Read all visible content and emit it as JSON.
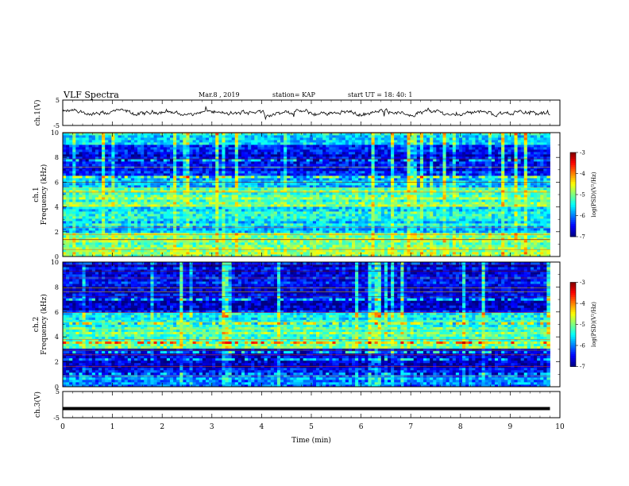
{
  "header": {
    "title": "VLF Spectra",
    "date": "Mar.8 , 2019",
    "station": "station= KAP",
    "start": "start UT = 18: 40: 1"
  },
  "chart_data": [
    {
      "type": "line",
      "name": "ch1-waveform",
      "ylabel": "ch.1(V)",
      "yticks": [
        "5",
        "-5"
      ],
      "ylim": [
        -5,
        5
      ],
      "xlim": [
        0,
        10
      ],
      "x_end": 9.8,
      "description_values": "noisy trace oscillating around 0 V with amplitude ~1-2 V"
    },
    {
      "type": "heatmap",
      "name": "ch1-spectrogram",
      "ylabel_line1": "ch.1",
      "ylabel_line2": "Frequency (kHz)",
      "yticks": [
        "0",
        "2",
        "4",
        "6",
        "8",
        "10"
      ],
      "ylim": [
        0,
        10
      ],
      "xlim": [
        0,
        10
      ],
      "x_end": 9.8,
      "colorbar": {
        "label": "log(PSD)(V²/Hz)",
        "ticks": [
          "-3",
          "-4",
          "-5",
          "-6",
          "-7"
        ],
        "range": [
          -7,
          -3
        ]
      },
      "frequency_bands": [
        {
          "from": 0,
          "to": 2,
          "level": -5.0
        },
        {
          "from": 2,
          "to": 4,
          "level": -5.6
        },
        {
          "from": 4,
          "to": 5.5,
          "level": -5.1
        },
        {
          "from": 5.5,
          "to": 6.5,
          "level": -5.8
        },
        {
          "from": 6.5,
          "to": 9,
          "level": -6.5
        },
        {
          "from": 9,
          "to": 10,
          "level": -5.5
        }
      ]
    },
    {
      "type": "heatmap",
      "name": "ch2-spectrogram",
      "ylabel_line1": "ch.2",
      "ylabel_line2": "Frequency (kHz)",
      "yticks": [
        "0",
        "2",
        "4",
        "6",
        "8",
        "10"
      ],
      "ylim": [
        0,
        10
      ],
      "xlim": [
        0,
        10
      ],
      "x_end": 9.8,
      "colorbar": {
        "label": "log(PSD)(V²/Hz)",
        "ticks": [
          "-3",
          "-4",
          "-5",
          "-6",
          "-7"
        ],
        "range": [
          -7,
          -3
        ]
      },
      "frequency_bands": [
        {
          "from": 0,
          "to": 1,
          "level": -6.0
        },
        {
          "from": 1,
          "to": 3,
          "level": -6.6
        },
        {
          "from": 3,
          "to": 5,
          "level": -5.2
        },
        {
          "from": 5,
          "to": 6,
          "level": -5.4
        },
        {
          "from": 6,
          "to": 10,
          "level": -6.6
        }
      ]
    },
    {
      "type": "line",
      "name": "ch3-waveform",
      "ylabel": "ch.3(V)",
      "yticks": [
        "5",
        "-5"
      ],
      "ylim": [
        -5,
        5
      ],
      "xlim": [
        0,
        10
      ],
      "x_end": 9.8,
      "constant_value": -1.5
    }
  ],
  "xaxis": {
    "label": "Time (min)",
    "ticks": [
      "0",
      "1",
      "2",
      "3",
      "4",
      "5",
      "6",
      "7",
      "8",
      "9",
      "10"
    ]
  }
}
